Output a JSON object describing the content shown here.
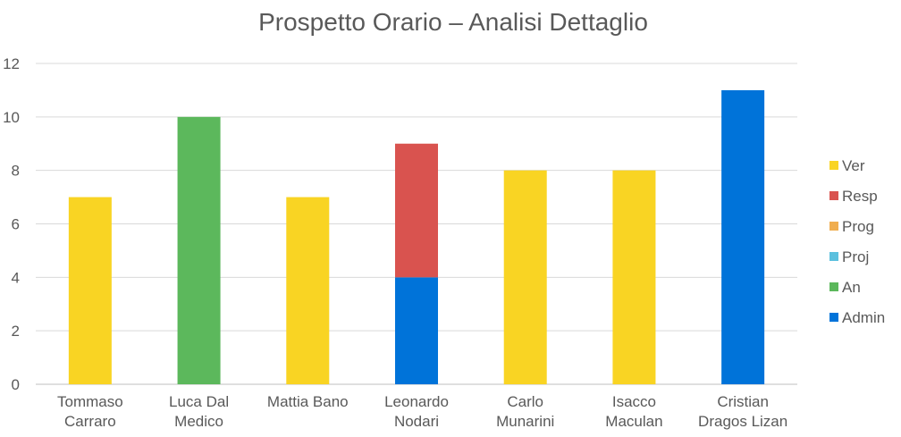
{
  "chart_data": {
    "type": "bar",
    "stacked": true,
    "title": "Prospetto Orario – Analisi Dettaglio",
    "xlabel": "",
    "ylabel": "",
    "ylim": [
      0,
      12
    ],
    "yticks": [
      0,
      2,
      4,
      6,
      8,
      10,
      12
    ],
    "grid": true,
    "legend_position": "right",
    "categories": [
      [
        "Tommaso",
        "Carraro"
      ],
      [
        "Luca Dal",
        "Medico"
      ],
      [
        "Mattia Bano"
      ],
      [
        "Leonardo",
        "Nodari"
      ],
      [
        "Carlo",
        "Munarini"
      ],
      [
        "Isacco",
        "Maculan"
      ],
      [
        "Cristian",
        "Dragos Lizan"
      ]
    ],
    "series": [
      {
        "name": "Admin",
        "color": "#0073d9",
        "values": [
          0,
          0,
          0,
          4,
          0,
          0,
          11
        ]
      },
      {
        "name": "An",
        "color": "#5cb85c",
        "values": [
          0,
          10,
          0,
          0,
          0,
          0,
          0
        ]
      },
      {
        "name": "Proj",
        "color": "#5bc0de",
        "values": [
          0,
          0,
          0,
          0,
          0,
          0,
          0
        ]
      },
      {
        "name": "Prog",
        "color": "#f0ad4e",
        "values": [
          0,
          0,
          0,
          0,
          0,
          0,
          0
        ]
      },
      {
        "name": "Resp",
        "color": "#d9534f",
        "values": [
          0,
          0,
          0,
          5,
          0,
          0,
          0
        ]
      },
      {
        "name": "Ver",
        "color": "#f9d423",
        "values": [
          7,
          0,
          7,
          0,
          8,
          8,
          0
        ]
      }
    ],
    "legend_order": [
      "Ver",
      "Resp",
      "Prog",
      "Proj",
      "An",
      "Admin"
    ]
  }
}
